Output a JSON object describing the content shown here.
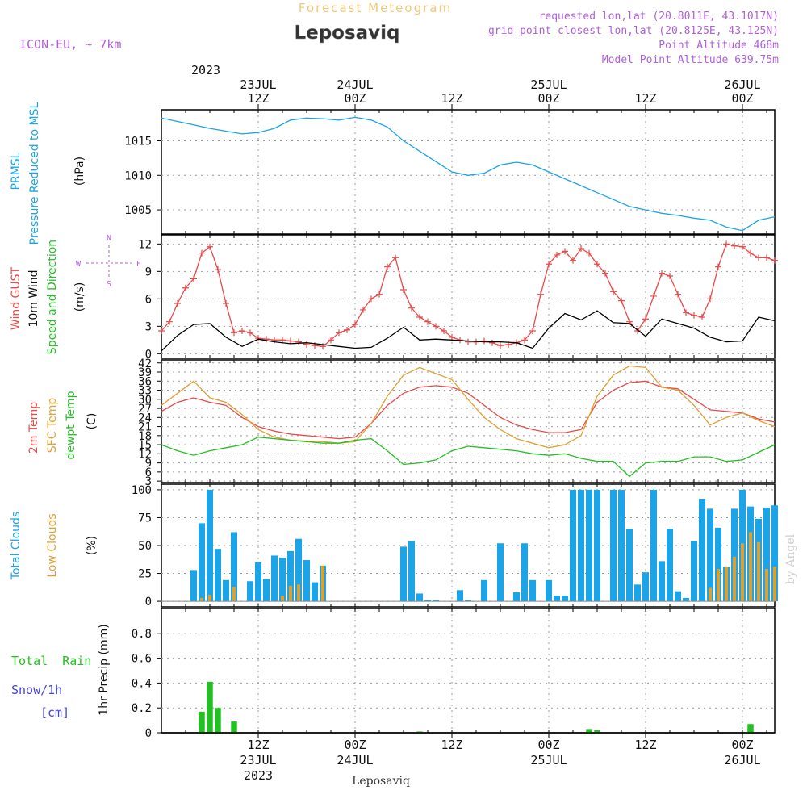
{
  "header": {
    "super_title": "Forecast Meteogram",
    "location": "Leposaviq",
    "model": "ICON-EU, ~ 7km",
    "requested": "requested lon,lat (20.8011E, 43.1017N)",
    "grid_point": "grid point closest lon,lat (20.8125E, 43.125N)",
    "point_alt": "Point Altitude 468m",
    "model_alt": "Model Point Altitude 639.75m",
    "bottom_label": "Leposaviq",
    "watermark": "by Angel"
  },
  "colors": {
    "pressure": "#1ba4e8",
    "gust": "#e84a4a",
    "wind": "#000000",
    "temp2m": "#e84a4a",
    "sfc": "#e0a030",
    "dew": "#22c022",
    "total_cloud": "#1ba4e8",
    "low_cloud": "#e0a030",
    "rain": "#22c022",
    "snow": "#4444e0",
    "header_purple": "#b060d8",
    "super_title": "#f0c878"
  },
  "time_axis": {
    "top_year": "2023",
    "top_labels": [
      {
        "hour": 12,
        "line1": "23JUL",
        "line2": "12Z"
      },
      {
        "hour": 24,
        "line1": "24JUL",
        "line2": "00Z"
      },
      {
        "hour": 36,
        "line1": "",
        "line2": "12Z"
      },
      {
        "hour": 48,
        "line1": "25JUL",
        "line2": "00Z"
      },
      {
        "hour": 60,
        "line1": "",
        "line2": "12Z"
      },
      {
        "hour": 72,
        "line1": "26JUL",
        "line2": "00Z"
      }
    ],
    "bottom_labels": [
      {
        "hour": 12,
        "line1": "12Z",
        "line2": "23JUL",
        "line3": "2023"
      },
      {
        "hour": 24,
        "line1": "00Z",
        "line2": "24JUL",
        "line3": ""
      },
      {
        "hour": 36,
        "line1": "12Z",
        "line2": "",
        "line3": ""
      },
      {
        "hour": 48,
        "line1": "00Z",
        "line2": "25JUL",
        "line3": ""
      },
      {
        "hour": 60,
        "line1": "12Z",
        "line2": "",
        "line3": ""
      },
      {
        "hour": 72,
        "line1": "00Z",
        "line2": "26JUL",
        "line3": ""
      }
    ]
  },
  "panels": {
    "pressure": {
      "label1": "PRMSL",
      "label2": "Pressure Reduced to MSL",
      "unit": "(hPa)"
    },
    "wind": {
      "label1": "Wind GUST",
      "label2": "10m Wind",
      "label3": "Speed and Direction",
      "unit": "(m/s)",
      "compass_n": "N",
      "compass_s": "S",
      "compass_w": "W",
      "compass_e": "E"
    },
    "temp": {
      "label1": "2m Temp",
      "label2": "SFC Temp",
      "label3": "dewpt Temp",
      "unit": "(C)"
    },
    "cloud": {
      "label1": "Total Clouds",
      "label2": "Low Clouds",
      "unit": "(%)"
    },
    "precip": {
      "label1": "Total  Rain",
      "label2": "Snow/1h",
      "label3": "[cm]",
      "unit": "1hr Precip (mm)"
    }
  },
  "chart_data": [
    {
      "type": "line",
      "title": "PRMSL Pressure Reduced to MSL",
      "ylabel": "(hPa)",
      "ylim": [
        1001.5,
        1019.5
      ],
      "yticks": [
        1005,
        1010,
        1015
      ],
      "x_hours_start": 0,
      "x_hours_end": 76,
      "series": [
        {
          "name": "PRMSL",
          "x": [
            0,
            2,
            4,
            6,
            8,
            10,
            12,
            14,
            16,
            18,
            20,
            22,
            24,
            26,
            28,
            30,
            32,
            34,
            36,
            38,
            40,
            42,
            44,
            46,
            48,
            50,
            52,
            54,
            56,
            58,
            60,
            62,
            64,
            66,
            68,
            70,
            72,
            74,
            76
          ],
          "values": [
            1018.3,
            1017.8,
            1017.3,
            1016.8,
            1016.4,
            1016.0,
            1016.2,
            1016.8,
            1018.0,
            1018.3,
            1018.2,
            1018.0,
            1018.4,
            1018.0,
            1017.0,
            1015.0,
            1013.5,
            1012.0,
            1010.5,
            1010.0,
            1010.3,
            1011.5,
            1011.9,
            1011.5,
            1010.5,
            1009.5,
            1008.5,
            1007.5,
            1006.5,
            1005.5,
            1005.0,
            1004.5,
            1004.2,
            1003.8,
            1003.5,
            1002.5,
            1002.0,
            1003.5,
            1004.0
          ]
        }
      ]
    },
    {
      "type": "line",
      "title": "Wind GUST / 10m Wind Speed and Direction",
      "ylabel": "(m/s)",
      "ylim": [
        -0.5,
        13
      ],
      "yticks": [
        0,
        3,
        6,
        9,
        12
      ],
      "x_hours_start": 0,
      "x_hours_end": 76,
      "series": [
        {
          "name": "Wind GUST",
          "x": [
            0,
            1,
            2,
            3,
            4,
            5,
            6,
            7,
            8,
            9,
            10,
            11,
            12,
            13,
            14,
            15,
            16,
            17,
            18,
            19,
            20,
            21,
            22,
            23,
            24,
            25,
            26,
            27,
            28,
            29,
            30,
            31,
            32,
            33,
            34,
            35,
            36,
            37,
            38,
            39,
            40,
            41,
            42,
            43,
            44,
            45,
            46,
            47,
            48,
            49,
            50,
            51,
            52,
            53,
            54,
            55,
            56,
            57,
            58,
            59,
            60,
            61,
            62,
            63,
            64,
            65,
            66,
            67,
            68,
            69,
            70,
            71,
            72,
            73,
            74,
            75,
            76
          ],
          "values": [
            2.5,
            3.5,
            5.5,
            7.2,
            8.2,
            11.0,
            11.7,
            9.2,
            5.5,
            2.3,
            2.5,
            2.3,
            1.7,
            1.6,
            1.5,
            1.5,
            1.4,
            1.3,
            1.0,
            0.9,
            0.8,
            1.5,
            2.3,
            2.6,
            3.2,
            4.8,
            6.0,
            6.5,
            9.5,
            10.5,
            7.0,
            5.0,
            4.0,
            3.5,
            3.0,
            2.5,
            1.8,
            1.5,
            1.3,
            1.3,
            1.4,
            1.2,
            0.9,
            1.0,
            1.2,
            1.5,
            2.5,
            6.5,
            9.8,
            10.8,
            11.2,
            10.2,
            11.5,
            11.0,
            9.8,
            8.8,
            6.8,
            5.8,
            3.5,
            2.5,
            3.8,
            6.3,
            8.8,
            8.5,
            6.5,
            4.5,
            4.2,
            4.0,
            6.0,
            9.5,
            12.0,
            11.8,
            11.7,
            11.0,
            10.5,
            10.5,
            10.2
          ]
        },
        {
          "name": "10m Wind",
          "x": [
            0,
            2,
            4,
            6,
            8,
            10,
            12,
            14,
            16,
            18,
            20,
            22,
            24,
            26,
            28,
            30,
            32,
            34,
            36,
            38,
            40,
            42,
            44,
            46,
            48,
            50,
            52,
            54,
            56,
            58,
            60,
            62,
            64,
            66,
            68,
            70,
            72,
            74,
            76
          ],
          "values": [
            0.3,
            2.0,
            3.2,
            3.3,
            1.8,
            0.8,
            1.6,
            1.3,
            1.1,
            1.2,
            1.0,
            0.8,
            0.6,
            0.7,
            1.7,
            2.9,
            1.5,
            1.6,
            1.5,
            1.4,
            1.3,
            1.3,
            1.2,
            0.6,
            2.8,
            4.4,
            3.7,
            4.7,
            3.4,
            3.3,
            1.9,
            3.8,
            3.3,
            2.8,
            1.8,
            1.3,
            1.4,
            4.0,
            3.6
          ]
        }
      ]
    },
    {
      "type": "line",
      "title": "2m Temp / SFC Temp / dewpt Temp",
      "ylabel": "(C)",
      "ylim": [
        2.5,
        43
      ],
      "yticks": [
        3,
        6,
        9,
        12,
        15,
        18,
        21,
        24,
        27,
        30,
        33,
        36,
        39,
        42
      ],
      "x_hours_start": 0,
      "x_hours_end": 76,
      "series": [
        {
          "name": "2m Temp",
          "x": [
            0,
            2,
            4,
            6,
            8,
            10,
            12,
            14,
            16,
            18,
            20,
            22,
            24,
            26,
            28,
            30,
            32,
            34,
            36,
            38,
            40,
            42,
            44,
            46,
            48,
            50,
            52,
            54,
            56,
            58,
            60,
            62,
            64,
            66,
            68,
            70,
            72,
            74,
            76
          ],
          "values": [
            26,
            29,
            30.5,
            29,
            28,
            24,
            21,
            19.5,
            18.5,
            18,
            17.5,
            17,
            17.5,
            22,
            28,
            32,
            34,
            34.5,
            34,
            32,
            28,
            24,
            21.5,
            20,
            19,
            19,
            20,
            29,
            33,
            35.5,
            36,
            34,
            33.5,
            30,
            26.5,
            26,
            25.5,
            23.5,
            22.5
          ]
        },
        {
          "name": "SFC Temp",
          "x": [
            0,
            2,
            4,
            6,
            8,
            10,
            12,
            14,
            16,
            18,
            20,
            22,
            24,
            26,
            28,
            30,
            32,
            34,
            36,
            38,
            40,
            42,
            44,
            46,
            48,
            50,
            52,
            54,
            56,
            58,
            60,
            62,
            64,
            66,
            68,
            70,
            72,
            74,
            76
          ],
          "values": [
            28,
            32,
            36,
            30.5,
            29,
            25,
            20,
            17.5,
            16.5,
            16.2,
            16,
            15.5,
            16,
            22,
            31,
            38,
            40.5,
            38.5,
            36.5,
            30,
            24,
            20,
            17,
            15.5,
            14,
            15,
            18,
            31,
            38,
            41,
            40.5,
            34,
            33,
            28,
            21.5,
            24,
            25.5,
            23,
            21
          ]
        },
        {
          "name": "dewpt Temp",
          "x": [
            0,
            2,
            4,
            6,
            8,
            10,
            12,
            14,
            16,
            18,
            20,
            22,
            24,
            26,
            28,
            30,
            32,
            34,
            36,
            38,
            40,
            42,
            44,
            46,
            48,
            50,
            52,
            54,
            56,
            58,
            60,
            62,
            64,
            66,
            68,
            70,
            72,
            74,
            76
          ],
          "values": [
            15,
            13,
            11.5,
            13,
            14,
            15,
            17.5,
            17,
            16.5,
            16,
            15.5,
            15.5,
            16.5,
            17,
            13,
            8.5,
            9,
            10,
            13,
            14.5,
            14,
            13.5,
            13,
            12,
            11.5,
            12,
            10.5,
            9.5,
            9.5,
            4.5,
            9,
            9.5,
            9.5,
            11,
            11,
            9.5,
            10,
            12.5,
            15
          ]
        }
      ]
    },
    {
      "type": "bar",
      "title": "Total Clouds / Low Clouds",
      "ylabel": "(%)",
      "ylim": [
        -5,
        105
      ],
      "yticks": [
        0,
        25,
        50,
        75,
        100
      ],
      "x_hours_start": 0,
      "x_hours_end": 76,
      "x": [
        4,
        5,
        6,
        7,
        8,
        9,
        11,
        12,
        13,
        14,
        15,
        16,
        17,
        18,
        19,
        20,
        30,
        31,
        32,
        33,
        34,
        37,
        38,
        40,
        42,
        44,
        45,
        46,
        48,
        49,
        50,
        51,
        52,
        53,
        54,
        56,
        57,
        58,
        59,
        60,
        61,
        62,
        63,
        64,
        65,
        66,
        67,
        68,
        69,
        70,
        71,
        72,
        73,
        74,
        75,
        76
      ],
      "series": [
        {
          "name": "Total Clouds",
          "values": [
            28,
            70,
            100,
            47,
            19,
            62,
            18,
            35,
            20,
            41,
            39,
            45,
            56,
            37,
            17,
            32,
            49,
            54,
            7,
            1,
            1,
            10,
            1,
            19,
            52,
            8,
            52,
            19,
            19,
            5,
            5,
            100,
            100,
            100,
            100,
            100,
            100,
            65,
            15,
            26,
            100,
            36,
            65,
            9,
            3,
            54,
            92,
            83,
            66,
            31,
            83,
            100,
            85,
            74,
            84,
            86
          ]
        },
        {
          "name": "Low Clouds",
          "values": [
            0,
            3,
            6,
            0,
            0,
            13,
            0,
            0,
            0,
            0,
            5,
            14,
            15,
            0,
            0,
            32,
            0,
            0,
            0,
            0,
            0,
            0,
            0,
            0,
            0,
            0,
            0,
            0,
            0,
            0,
            0,
            0,
            0,
            0,
            0,
            0,
            0,
            0,
            0,
            0,
            0,
            0,
            0,
            0,
            0,
            0,
            0,
            12,
            29,
            31,
            40,
            52,
            62,
            53,
            29,
            31
          ]
        }
      ]
    },
    {
      "type": "bar",
      "title": "1hr Precip",
      "ylabel": "1hr Precip (mm)",
      "ylim": [
        0,
        1
      ],
      "yticks": [
        0,
        0.2,
        0.4,
        0.6,
        0.8
      ],
      "x_hours_start": 0,
      "x_hours_end": 76,
      "x": [
        5,
        6,
        7,
        9,
        32,
        53,
        54,
        73
      ],
      "series": [
        {
          "name": "Total Rain",
          "values": [
            0.17,
            0.41,
            0.2,
            0.09,
            0.01,
            0.03,
            0.02,
            0.07
          ]
        }
      ]
    }
  ]
}
